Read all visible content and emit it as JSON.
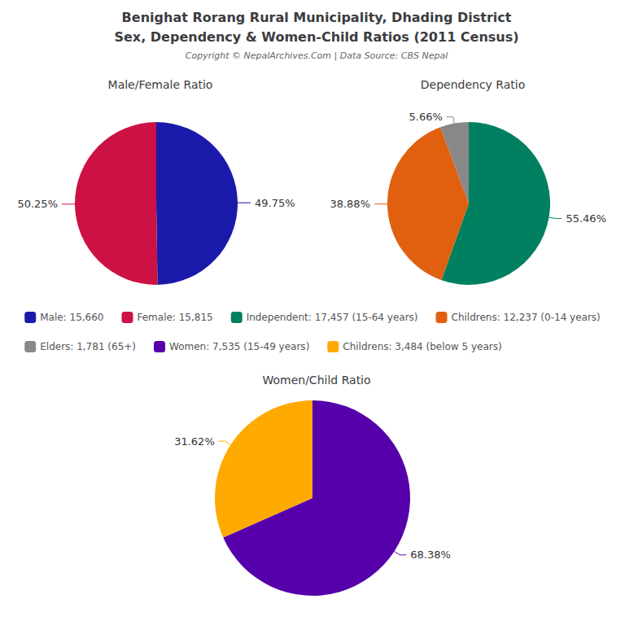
{
  "title": "Benighat Rorang Rural Municipality, Dhading District",
  "subtitle": "Sex, Dependency & Women-Child Ratios (2011 Census)",
  "annotations": [
    "Copyright © NepalArchives.Com | Data Source: CBS Nepal"
  ],
  "legend": "center",
  "chart_data": [
    {
      "type": "pie",
      "title": "Male/Female Ratio",
      "categories": [
        "Male: 15,660",
        "Female: 15,815"
      ],
      "values": [
        49.75,
        50.25
      ],
      "value_labels": [
        "49.75%",
        "50.25%"
      ],
      "colors": [
        "#1a1aaa",
        "#cc1144"
      ],
      "data_labels": true
    },
    {
      "type": "pie",
      "title": "Dependency Ratio",
      "categories": [
        "Independent: 17,457 (15-64 years)",
        "Childrens: 12,237 (0-14 years)",
        "Elders: 1,781 (65+)"
      ],
      "values": [
        55.46,
        38.88,
        5.66
      ],
      "value_labels": [
        "55.46%",
        "38.88%",
        "5.66%"
      ],
      "colors": [
        "#008060",
        "#e06010",
        "#888888"
      ],
      "data_labels": true
    },
    {
      "type": "pie",
      "title": "Women/Child Ratio",
      "categories": [
        "Women: 7,535 (15-49 years)",
        "Childrens: 3,484 (below 5 years)"
      ],
      "values": [
        68.38,
        31.62
      ],
      "value_labels": [
        "68.38%",
        "31.62%"
      ],
      "colors": [
        "#5500aa",
        "#ffaa00"
      ],
      "data_labels": true
    }
  ]
}
